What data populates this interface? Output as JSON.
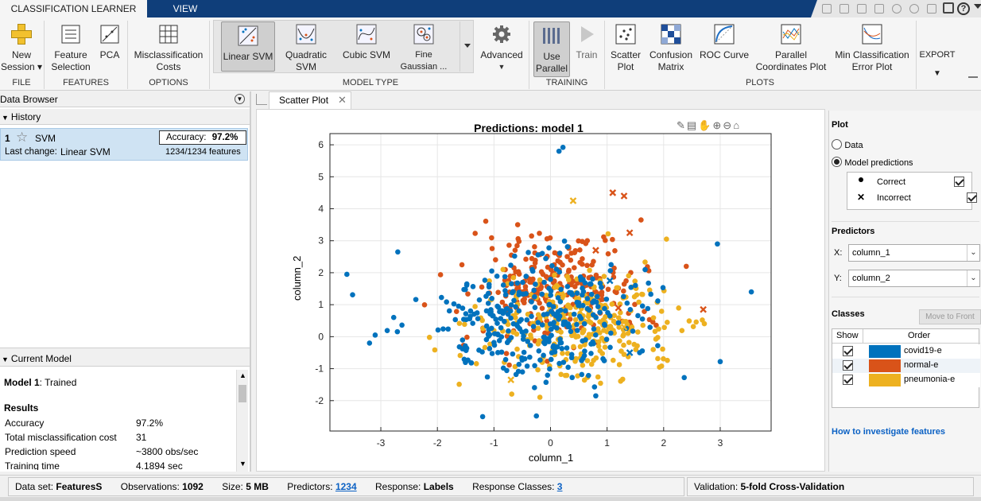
{
  "tabs": {
    "classification": "CLASSIFICATION LEARNER",
    "view": "VIEW"
  },
  "ribbon": {
    "new_session": "New\nSession ▾",
    "feature_selection": "Feature\nSelection",
    "pca": "PCA",
    "misclassification_costs": "Misclassification\nCosts",
    "linear_svm": "Linear SVM",
    "quadratic_svm": "Quadratic\nSVM",
    "cubic_svm": "Cubic SVM",
    "fine_gaussian": "Fine\nGaussian ...",
    "advanced": "Advanced",
    "use_parallel": "Use\nParallel",
    "train": "Train",
    "scatter_plot": "Scatter\nPlot",
    "confusion_matrix": "Confusion\nMatrix",
    "roc_curve": "ROC Curve",
    "parallel_coordinates": "Parallel\nCoordinates Plot",
    "min_classification": "Min Classification\nError Plot",
    "export": "EXPORT",
    "groups": {
      "file": "FILE",
      "features": "FEATURES",
      "options": "OPTIONS",
      "model_type": "MODEL TYPE",
      "training": "TRAINING",
      "plots": "PLOTS"
    }
  },
  "left": {
    "data_browser": "Data Browser",
    "history": "History",
    "model_num": "1",
    "model_name": "SVM",
    "accuracy_label": "Accuracy:",
    "accuracy_value": "97.2%",
    "last_change_label": "Last change:",
    "last_change_value": "Linear SVM",
    "features": "1234/1234 features",
    "current_model": "Current Model",
    "model_title": "Model 1",
    "model_status": ": Trained",
    "results": "Results",
    "rows": [
      {
        "k": "Accuracy",
        "v": "97.2%"
      },
      {
        "k": "Total misclassification cost",
        "v": "31"
      },
      {
        "k": "Prediction speed",
        "v": "~3800 obs/sec"
      },
      {
        "k": "Training time",
        "v": "4.1894 sec"
      }
    ]
  },
  "doc": {
    "tab_label": "Scatter Plot"
  },
  "chart_data": {
    "type": "scatter",
    "title": "Predictions: model 1",
    "xlabel": "column_1",
    "ylabel": "column_2",
    "xlim": [
      -3.9,
      3.9
    ],
    "ylim": [
      -2.95,
      6.35
    ],
    "xticks": [
      -3,
      -2,
      -1,
      0,
      1,
      2,
      3
    ],
    "yticks": [
      -2,
      -1,
      0,
      1,
      2,
      3,
      4,
      5,
      6
    ],
    "grid": true,
    "series": [
      {
        "name": "covid19-e",
        "color": "#0072bd"
      },
      {
        "name": "normal-e",
        "color": "#d95319"
      },
      {
        "name": "pneumonia-e",
        "color": "#edb120"
      }
    ],
    "incorrect": [
      {
        "x": 1.1,
        "y": 4.5,
        "series": 1
      },
      {
        "x": 1.3,
        "y": 4.4,
        "series": 1
      },
      {
        "x": 1.4,
        "y": 3.25,
        "series": 1
      },
      {
        "x": 0.8,
        "y": 2.7,
        "series": 1
      },
      {
        "x": 2.7,
        "y": 0.85,
        "series": 1
      },
      {
        "x": 1.2,
        "y": 0.9,
        "series": 1
      },
      {
        "x": 0.4,
        "y": 4.25,
        "series": 2
      },
      {
        "x": -0.7,
        "y": -1.35,
        "series": 2
      },
      {
        "x": 1.4,
        "y": -0.5,
        "series": 0
      },
      {
        "x": 1.05,
        "y": 1.75,
        "series": 0
      },
      {
        "x": 1.3,
        "y": 0.3,
        "series": 2
      }
    ]
  },
  "right": {
    "plot": "Plot",
    "data": "Data",
    "model_predictions": "Model predictions",
    "correct": "Correct",
    "incorrect": "Incorrect",
    "predictors": "Predictors",
    "x_label": "X:",
    "x_value": "column_1",
    "y_label": "Y:",
    "y_value": "column_2",
    "classes": "Classes",
    "move_to_front": "Move to Front",
    "show": "Show",
    "order": "Order",
    "class_names": [
      "covid19-e",
      "normal-e",
      "pneumonia-e"
    ],
    "how_to": "How to investigate features"
  },
  "status": {
    "dataset_label": "Data set:",
    "dataset_value": "FeaturesS",
    "obs_label": "Observations:",
    "obs_value": "1092",
    "size_label": "Size:",
    "size_value": "5 MB",
    "predictors_label": "Predictors:",
    "predictors_value": "1234",
    "response_label": "Response:",
    "response_value": "Labels",
    "classes_label": "Response Classes:",
    "classes_value": "3",
    "validation_label": "Validation:",
    "validation_value": "5-fold Cross-Validation"
  }
}
